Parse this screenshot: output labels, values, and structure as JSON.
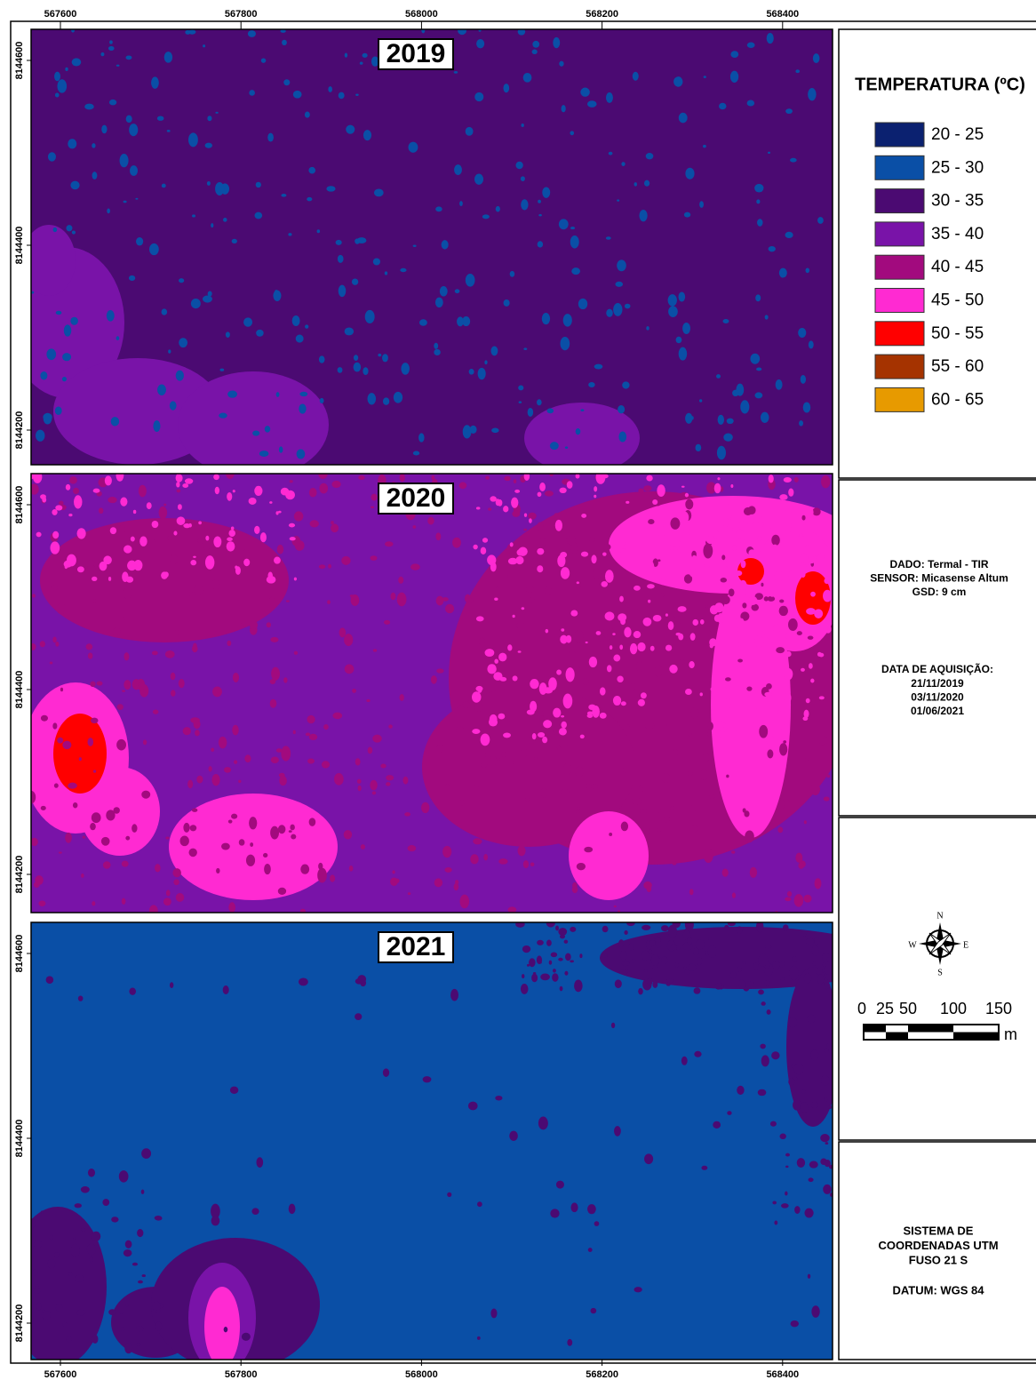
{
  "x_ticks": [
    567600,
    567800,
    568000,
    568200,
    568400
  ],
  "y_ticks": [
    8144600,
    8144400,
    8144200
  ],
  "panels": [
    {
      "year": "2019"
    },
    {
      "year": "2020"
    },
    {
      "year": "2021"
    }
  ],
  "legend": {
    "title": "TEMPERATURA (ºC)",
    "classes": [
      {
        "label": "20 - 25",
        "color": "#0b2170"
      },
      {
        "label": "25 - 30",
        "color": "#0a4fa6"
      },
      {
        "label": "30 - 35",
        "color": "#4b0a72"
      },
      {
        "label": "35 - 40",
        "color": "#7913a8"
      },
      {
        "label": "40 - 45",
        "color": "#a20a7e"
      },
      {
        "label": "45 - 50",
        "color": "#ff2ad2"
      },
      {
        "label": "50 - 55",
        "color": "#ff0000"
      },
      {
        "label": "55 - 60",
        "color": "#a53300"
      },
      {
        "label": "60 - 65",
        "color": "#e79a00"
      }
    ]
  },
  "info": {
    "lines": [
      "DADO: Termal - TIR",
      "SENSOR: Micasense Altum",
      "GSD: 9 cm"
    ]
  },
  "acquisition": {
    "title": "DATA DE AQUISIÇÃO:",
    "dates": [
      "21/11/2019",
      "03/11/2020",
      "01/06/2021"
    ]
  },
  "compass": {
    "n": "N",
    "s": "S",
    "e": "E",
    "w": "W"
  },
  "scale": {
    "labels": [
      "0",
      "25",
      "50",
      "100",
      "150"
    ],
    "unit": "m"
  },
  "system": {
    "lines": [
      "SISTEMA DE",
      "COORDENADAS UTM",
      "FUSO 21 S"
    ],
    "datum": "DATUM: WGS 84"
  }
}
